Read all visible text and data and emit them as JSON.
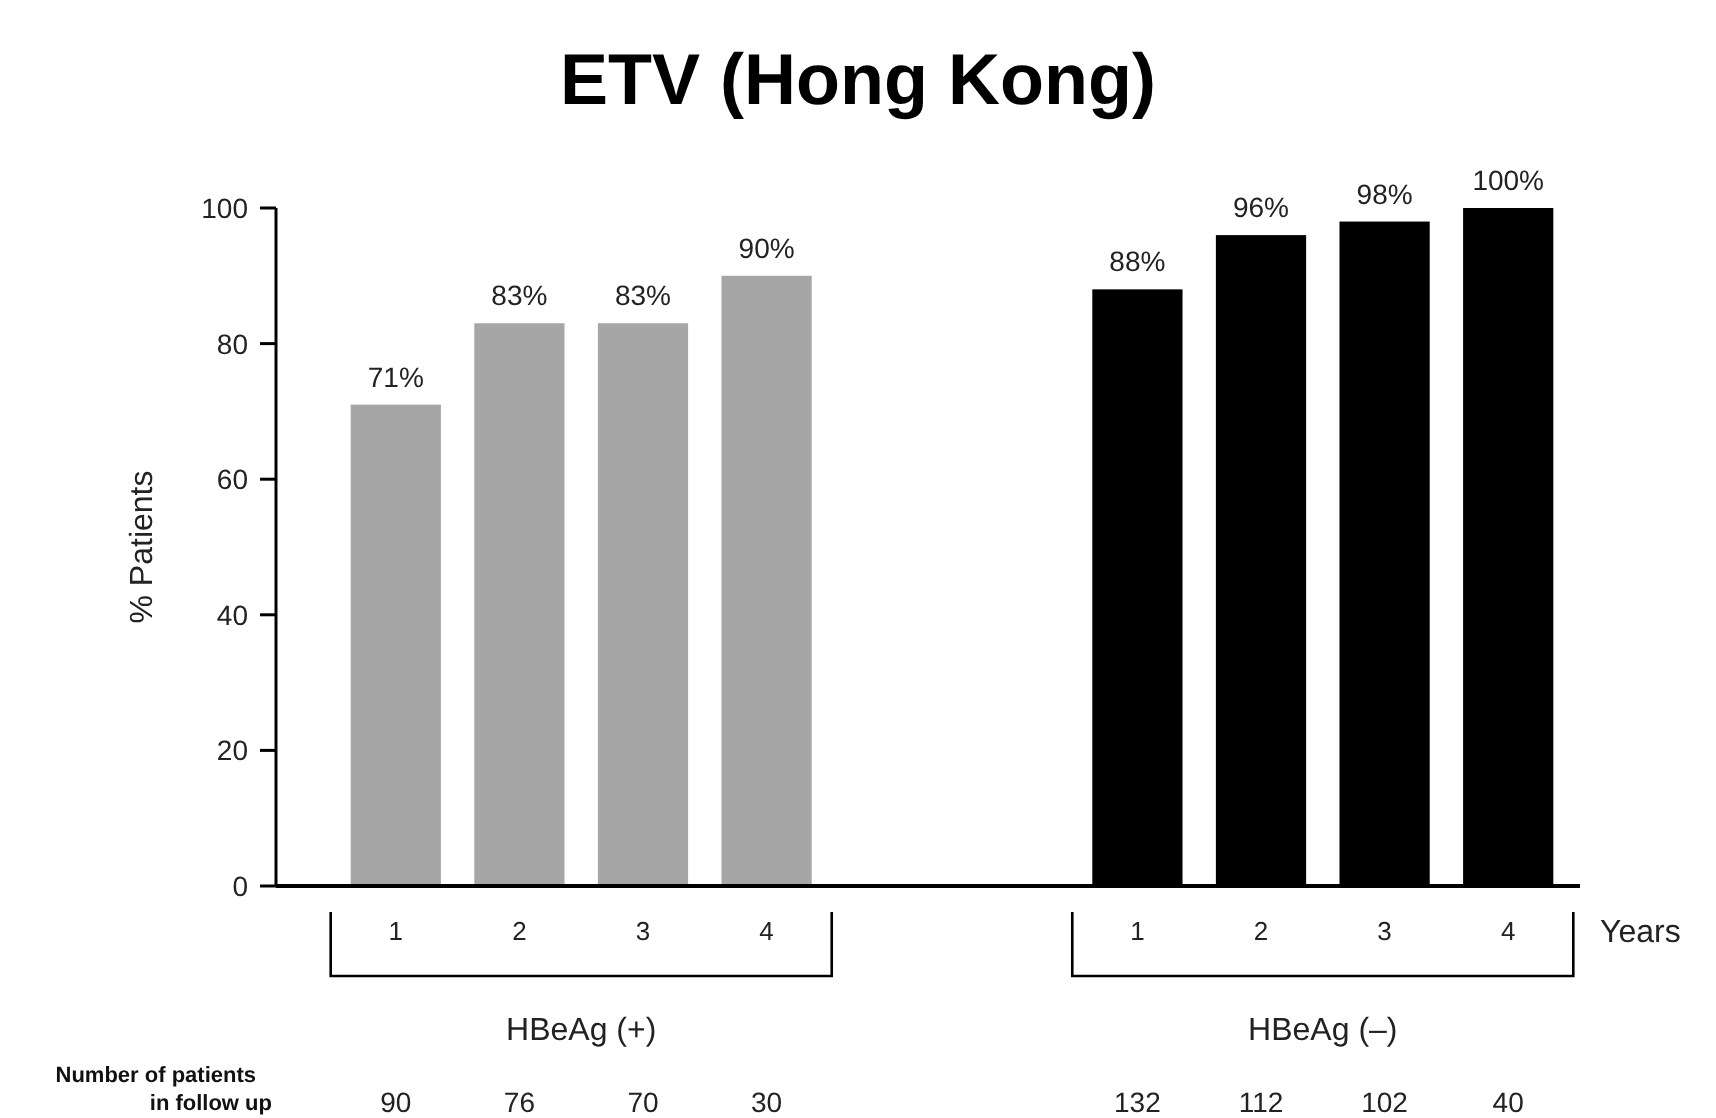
{
  "chart_data": {
    "type": "bar",
    "title": "ETV (Hong Kong)",
    "ylabel": "% Patients",
    "xlabel": "Years",
    "categories": [
      "1",
      "2",
      "3",
      "4",
      null,
      null,
      "1",
      "2",
      "3",
      "4"
    ],
    "values": [
      71,
      83,
      83,
      90,
      null,
      null,
      88,
      96,
      98,
      100
    ],
    "colors": [
      "#a6a6a6",
      "#a6a6a6",
      "#a6a6a6",
      "#a6a6a6",
      null,
      null,
      "#000000",
      "#000000",
      "#000000",
      "#000000"
    ],
    "value_labels": [
      "71%",
      "83%",
      "83%",
      "90%",
      null,
      null,
      "88%",
      "96%",
      "98%",
      "100%"
    ],
    "ylim": [
      0,
      100
    ],
    "yticks": [
      0,
      20,
      40,
      60,
      80,
      100
    ],
    "grid": false,
    "annotations": [
      "HBeAg (+)",
      "HBeAg (–)",
      "Number of patients\nin follow up",
      "90",
      "76",
      "70",
      "30",
      "132",
      "112",
      "102",
      "40"
    ]
  }
}
